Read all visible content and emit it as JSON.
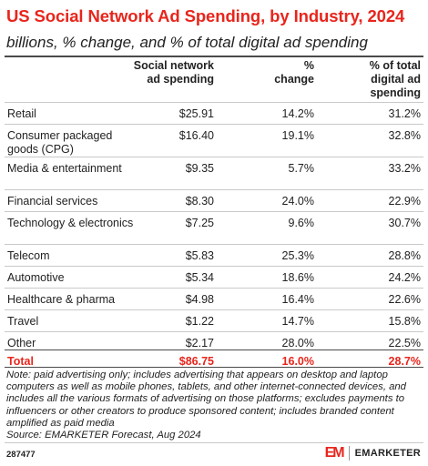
{
  "title": "US Social Network Ad Spending, by Industry, 2024",
  "subtitle": "billions, % change, and % of total digital ad spending",
  "columns": {
    "spend": [
      "Social network",
      "ad spending"
    ],
    "change": [
      "%",
      "change"
    ],
    "share": [
      "% of total",
      "digital ad",
      "spending"
    ]
  },
  "chart_data": {
    "type": "table",
    "title": "US Social Network Ad Spending, by Industry, 2024",
    "subtitle": "billions, % change, and % of total digital ad spending",
    "headers": [
      "Social network ad spending",
      "% change",
      "% of total digital ad spending"
    ],
    "rows": [
      {
        "category": "Retail",
        "spending": "$25.91",
        "change": "14.2%",
        "share": "31.2%"
      },
      {
        "category": "Consumer packaged goods (CPG)",
        "spending": "$16.40",
        "change": "19.1%",
        "share": "32.8%"
      },
      {
        "category": "Media & entertainment",
        "spending": "$9.35",
        "change": "5.7%",
        "share": "33.2%"
      },
      {
        "category": "Financial services",
        "spending": "$8.30",
        "change": "24.0%",
        "share": "22.9%"
      },
      {
        "category": "Technology & electronics",
        "spending": "$7.25",
        "change": "9.6%",
        "share": "30.7%"
      },
      {
        "category": "Telecom",
        "spending": "$5.83",
        "change": "25.3%",
        "share": "28.8%"
      },
      {
        "category": "Automotive",
        "spending": "$5.34",
        "change": "18.6%",
        "share": "24.2%"
      },
      {
        "category": "Healthcare & pharma",
        "spending": "$4.98",
        "change": "16.4%",
        "share": "22.6%"
      },
      {
        "category": "Travel",
        "spending": "$1.22",
        "change": "14.7%",
        "share": "15.8%"
      },
      {
        "category": "Other",
        "spending": "$2.17",
        "change": "28.0%",
        "share": "22.5%"
      }
    ],
    "total": {
      "category": "Total",
      "spending": "$86.75",
      "change": "16.0%",
      "share": "28.7%"
    }
  },
  "note": "Note: paid advertising only; includes advertising that appears on desktop and laptop computers as well as mobile phones, tablets, and other internet-connected devices, and includes all the various formats of advertising on those platforms; excludes payments to influencers or other creators to produce sponsored content; includes branded content amplified as paid media",
  "source": "Source: EMARKETER Forecast, Aug 2024",
  "chart_id": "287477",
  "brand": {
    "mark": "EM",
    "name": "EMARKETER"
  },
  "colors": {
    "accent": "#e8251c",
    "text": "#222222",
    "rule": "#c9c9c9"
  }
}
